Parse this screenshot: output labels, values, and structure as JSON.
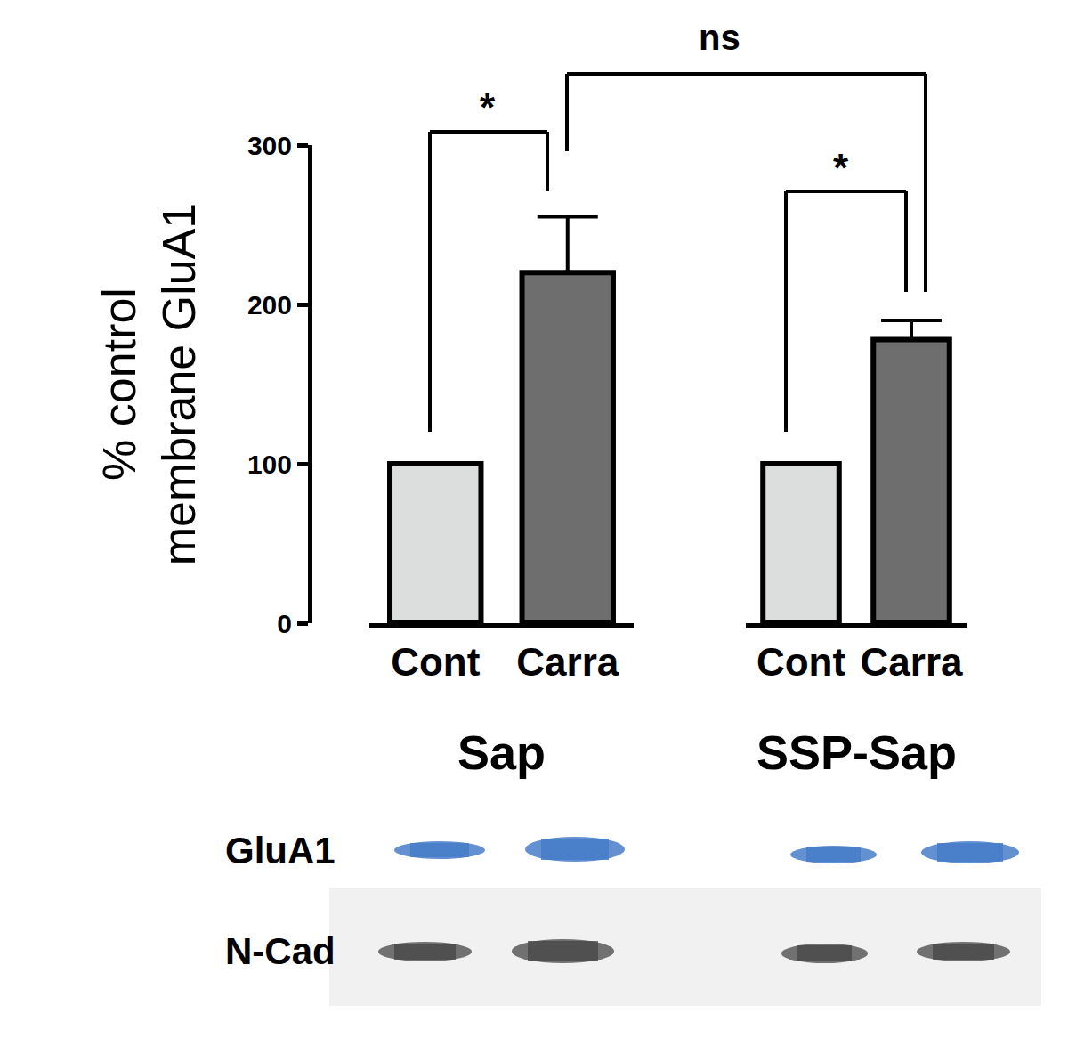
{
  "chart_data": {
    "type": "bar",
    "ylabel": [
      "% control",
      "membrane GluA1"
    ],
    "ylim": [
      0,
      300
    ],
    "yticks": [
      0,
      100,
      200,
      300
    ],
    "colors": [
      "#dcdddd",
      "#6e6e6e"
    ],
    "groups": [
      {
        "name": "Sap",
        "categories": [
          "Cont",
          "Carra"
        ],
        "values": [
          100,
          220
        ],
        "errors": [
          null,
          35
        ]
      },
      {
        "name": "SSP-Sap",
        "categories": [
          "Cont",
          "Carra"
        ],
        "values": [
          100,
          178
        ],
        "errors": [
          null,
          12
        ]
      }
    ],
    "annotations": [
      "*",
      "*",
      "ns"
    ]
  },
  "blot": {
    "rows": [
      "GluA1",
      "N-Cad"
    ]
  }
}
